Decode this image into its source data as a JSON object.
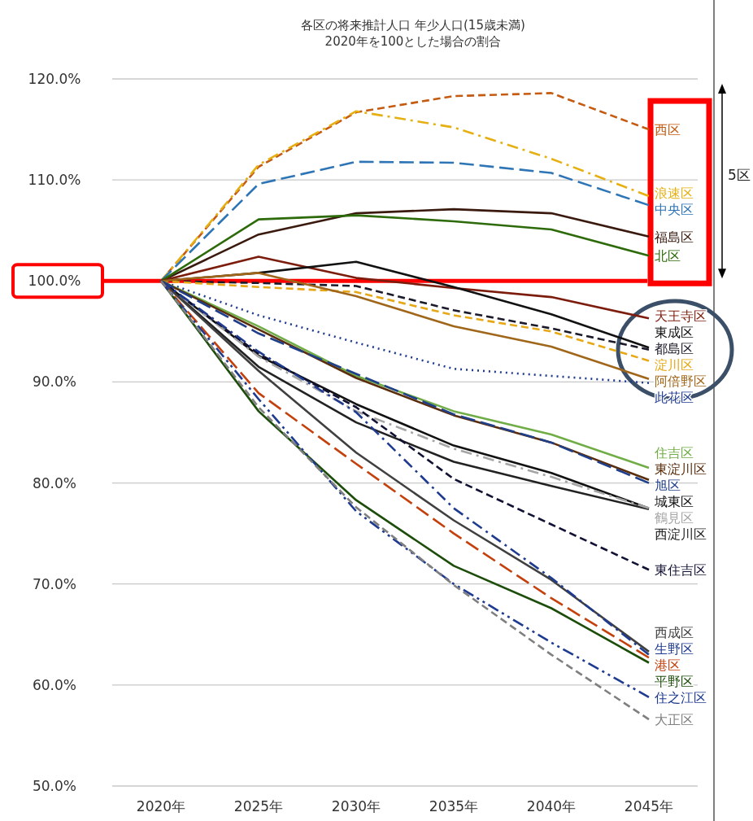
{
  "chart_data": {
    "type": "line",
    "title": "各区の将来推計人口 年少人口(15歳未満)",
    "subtitle": "2020年を100とした場合の割合",
    "categories": [
      "2020年",
      "2025年",
      "2030年",
      "2035年",
      "2040年",
      "2045年"
    ],
    "ylim": [
      50,
      120
    ],
    "yticks": [
      {
        "value": 50,
        "label": "50.0%"
      },
      {
        "value": 60,
        "label": "60.0%"
      },
      {
        "value": 70,
        "label": "70.0%"
      },
      {
        "value": 80,
        "label": "80.0%"
      },
      {
        "value": 90,
        "label": "90.0%"
      },
      {
        "value": 100,
        "label": "100.0%"
      },
      {
        "value": 110,
        "label": "110.0%"
      },
      {
        "value": 120,
        "label": "120.0%"
      }
    ],
    "grid": "y",
    "legend": false,
    "marker": "none",
    "ref_lines": [
      {
        "axis": "y",
        "value": 100,
        "color": "#ff0000"
      }
    ],
    "annotations": [
      "5区"
    ],
    "series": [
      {
        "name": "西区",
        "color": "#c55a11",
        "line_style": "dashed",
        "values": [
          100,
          111.3,
          116.7,
          118.3,
          118.6,
          115.0
        ]
      },
      {
        "name": "浪速区",
        "color": "#e6b012",
        "line_style": "dashdot",
        "values": [
          100,
          111.5,
          116.8,
          115.2,
          112.1,
          108.4
        ]
      },
      {
        "name": "中央区",
        "color": "#2e75b6",
        "line_style": "longdash",
        "values": [
          100,
          109.6,
          111.8,
          111.7,
          110.7,
          107.5
        ]
      },
      {
        "name": "福島区",
        "color": "#3a1a0e",
        "line_style": "solid",
        "values": [
          100,
          104.6,
          106.7,
          107.1,
          106.7,
          104.4
        ]
      },
      {
        "name": "北区",
        "color": "#2d6a0a",
        "line_style": "solid",
        "values": [
          100,
          106.1,
          106.5,
          105.9,
          105.1,
          102.5
        ]
      },
      {
        "name": "天王寺区",
        "color": "#7b1c0c",
        "line_style": "solid",
        "values": [
          100,
          102.4,
          100.3,
          99.3,
          98.4,
          96.3
        ]
      },
      {
        "name": "東成区",
        "color": "#111111",
        "line_style": "solid",
        "values": [
          100,
          100.8,
          101.9,
          99.4,
          96.7,
          93.4
        ]
      },
      {
        "name": "都島区",
        "color": "#1a1a2a",
        "line_style": "dashed",
        "values": [
          100,
          99.8,
          99.5,
          97.1,
          95.3,
          93.2
        ]
      },
      {
        "name": "淀川区",
        "color": "#e6a817",
        "line_style": "dashed",
        "values": [
          100,
          99.4,
          98.9,
          96.6,
          95.0,
          92.1
        ]
      },
      {
        "name": "阿倍野区",
        "color": "#a0661a",
        "line_style": "solid",
        "values": [
          100,
          100.8,
          98.5,
          95.5,
          93.5,
          90.3
        ]
      },
      {
        "name": "此花区",
        "color": "#1f3b8f",
        "line_style": "dotted",
        "values": [
          100,
          96.6,
          93.9,
          91.3,
          90.6,
          89.9
        ]
      },
      {
        "name": "住吉区",
        "color": "#70ad47",
        "line_style": "solid",
        "values": [
          100,
          95.5,
          90.6,
          87.1,
          84.8,
          81.5
        ]
      },
      {
        "name": "東淀川区",
        "color": "#5a2d0c",
        "line_style": "solid",
        "values": [
          100,
          95.2,
          90.4,
          86.7,
          84.0,
          80.3
        ]
      },
      {
        "name": "旭区",
        "color": "#203f8a",
        "line_style": "longdash",
        "values": [
          100,
          94.8,
          90.8,
          86.8,
          84.0,
          80.0
        ]
      },
      {
        "name": "城東区",
        "color": "#111111",
        "line_style": "solid",
        "values": [
          100,
          92.6,
          87.8,
          83.7,
          81.0,
          77.5
        ]
      },
      {
        "name": "西淀川区",
        "color": "#222222",
        "line_style": "solid",
        "values": [
          100,
          91.5,
          86.0,
          82.1,
          79.7,
          77.4
        ]
      },
      {
        "name": "鶴見区",
        "color": "#a5a5a5",
        "line_style": "dashdot",
        "values": [
          100,
          92.5,
          87.1,
          83.4,
          80.6,
          77.5
        ]
      },
      {
        "name": "東住吉区",
        "color": "#111133",
        "line_style": "dashed",
        "values": [
          100,
          92.8,
          87.5,
          80.4,
          75.9,
          71.4
        ]
      },
      {
        "name": "西成区",
        "color": "#404040",
        "line_style": "solid",
        "values": [
          100,
          91.1,
          83.0,
          76.3,
          70.4,
          63.3
        ]
      },
      {
        "name": "生野区",
        "color": "#1f3b8f",
        "line_style": "dashdot",
        "values": [
          100,
          93.0,
          87.0,
          77.5,
          70.6,
          63.0
        ]
      },
      {
        "name": "港区",
        "color": "#c4400c",
        "line_style": "longdash",
        "values": [
          100,
          88.9,
          81.9,
          75.0,
          68.6,
          62.7
        ]
      },
      {
        "name": "平野区",
        "color": "#1d4d0a",
        "line_style": "solid",
        "values": [
          100,
          87.1,
          78.3,
          71.8,
          67.6,
          62.2
        ]
      },
      {
        "name": "住之江区",
        "color": "#1f3b8f",
        "line_style": "dashdotdot",
        "values": [
          100,
          88.3,
          77.2,
          70.0,
          64.2,
          58.8
        ]
      },
      {
        "name": "大正区",
        "color": "#7f7f7f",
        "line_style": "dashed",
        "values": [
          100,
          87.5,
          77.6,
          69.9,
          63.0,
          56.6
        ]
      }
    ]
  }
}
